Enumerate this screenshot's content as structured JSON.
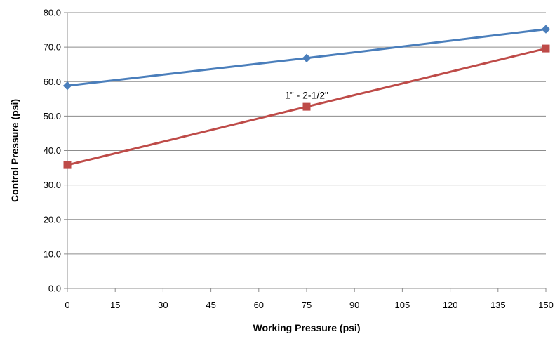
{
  "chart_data": {
    "type": "line",
    "title": "",
    "xlabel": "Working Pressure (psi)",
    "ylabel": "Control Pressure (psi)",
    "xlim": [
      0,
      150
    ],
    "ylim": [
      0,
      80
    ],
    "x_ticks": [
      "0",
      "15",
      "30",
      "45",
      "60",
      "75",
      "90",
      "105",
      "120",
      "135",
      "150"
    ],
    "y_ticks": [
      "0.0",
      "10.0",
      "20.0",
      "30.0",
      "40.0",
      "50.0",
      "60.0",
      "70.0",
      "80.0"
    ],
    "grid": "horizontal",
    "legend": "none",
    "series": [
      {
        "color": "#4a7ebb",
        "marker": "diamond",
        "x": [
          0,
          75,
          150
        ],
        "y": [
          58.8,
          66.8,
          75.2
        ]
      },
      {
        "color": "#be4b48",
        "marker": "square",
        "x": [
          0,
          75,
          150
        ],
        "y": [
          35.8,
          52.7,
          69.6
        ]
      }
    ],
    "annotations": [
      {
        "text": "1\" - 2-1/2\"",
        "x": 75,
        "y": 55.5
      }
    ]
  }
}
